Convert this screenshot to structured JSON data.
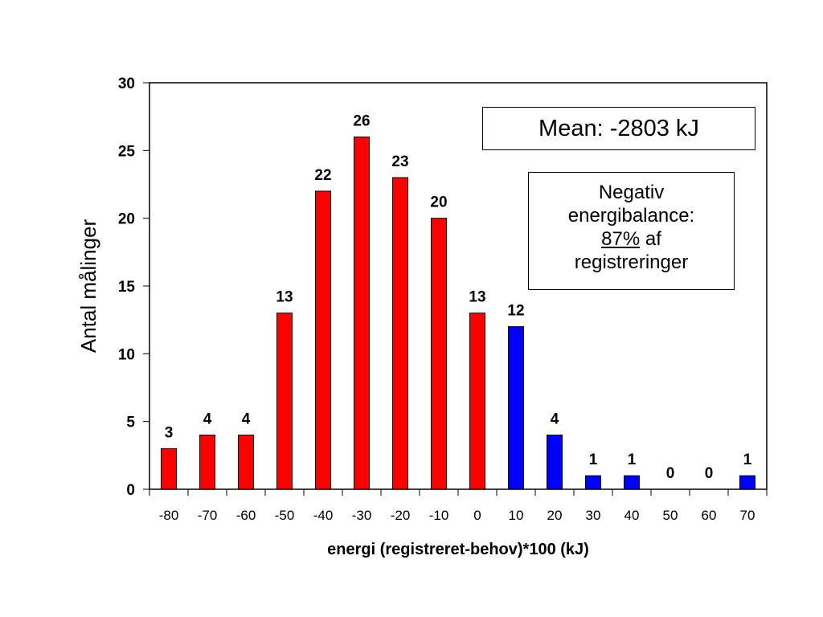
{
  "chart_data": {
    "type": "bar",
    "categories": [
      "-80",
      "-70",
      "-60",
      "-50",
      "-40",
      "-30",
      "-20",
      "-10",
      "0",
      "10",
      "20",
      "30",
      "40",
      "50",
      "60",
      "70"
    ],
    "values": [
      3,
      4,
      4,
      13,
      22,
      26,
      23,
      20,
      13,
      12,
      4,
      1,
      1,
      0,
      0,
      1
    ],
    "bar_colors": [
      "#ff0000",
      "#ff0000",
      "#ff0000",
      "#ff0000",
      "#ff0000",
      "#ff0000",
      "#ff0000",
      "#ff0000",
      "#ff0000",
      "#0000ff",
      "#0000ff",
      "#0000ff",
      "#0000ff",
      "#0000ff",
      "#0000ff",
      "#0000ff"
    ],
    "xlabel": "energi (registreret-behov)*100 (kJ)",
    "ylabel": "Antal målinger",
    "ylim": [
      0,
      30
    ],
    "yticks": [
      0,
      5,
      10,
      15,
      20,
      25,
      30
    ],
    "grid": false,
    "data_labels": true
  },
  "annotations": {
    "mean": "Mean: -2803 kJ",
    "neg_line1": "Negativ",
    "neg_line2": "energibalance:",
    "neg_pct": "87%",
    "neg_af": " af",
    "neg_line4": "registreringer"
  }
}
